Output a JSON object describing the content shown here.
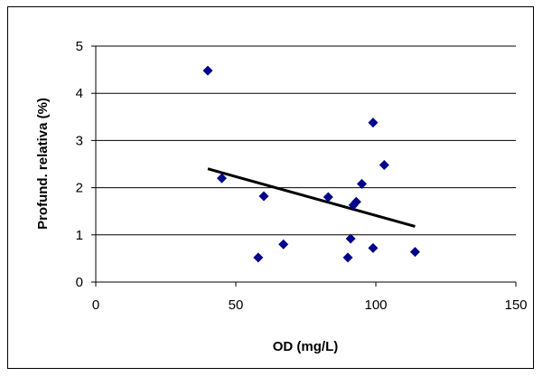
{
  "chart_data": {
    "type": "scatter",
    "title": "",
    "xlabel": "OD (mg/L)",
    "ylabel": "Profund. relativa (%)",
    "xlim": [
      0,
      150
    ],
    "ylim": [
      0,
      5
    ],
    "x_ticks": [
      0,
      50,
      100,
      150
    ],
    "y_ticks": [
      0,
      1,
      2,
      3,
      4,
      5
    ],
    "grid": "horizontal",
    "legend": "none",
    "marker": "diamond",
    "marker_color": "#00008B",
    "trendline_color": "#000000",
    "points": [
      {
        "x": 40,
        "y": 4.48
      },
      {
        "x": 45,
        "y": 2.2
      },
      {
        "x": 58,
        "y": 0.52
      },
      {
        "x": 60,
        "y": 1.82
      },
      {
        "x": 67,
        "y": 0.8
      },
      {
        "x": 83,
        "y": 1.8
      },
      {
        "x": 90,
        "y": 0.52
      },
      {
        "x": 91,
        "y": 0.92
      },
      {
        "x": 92,
        "y": 1.63
      },
      {
        "x": 93,
        "y": 1.7
      },
      {
        "x": 95,
        "y": 2.08
      },
      {
        "x": 99,
        "y": 0.72
      },
      {
        "x": 99,
        "y": 3.38
      },
      {
        "x": 103,
        "y": 2.48
      },
      {
        "x": 114,
        "y": 0.64
      }
    ],
    "trendline": [
      {
        "x": 40,
        "y": 2.4
      },
      {
        "x": 114,
        "y": 1.18
      }
    ]
  }
}
